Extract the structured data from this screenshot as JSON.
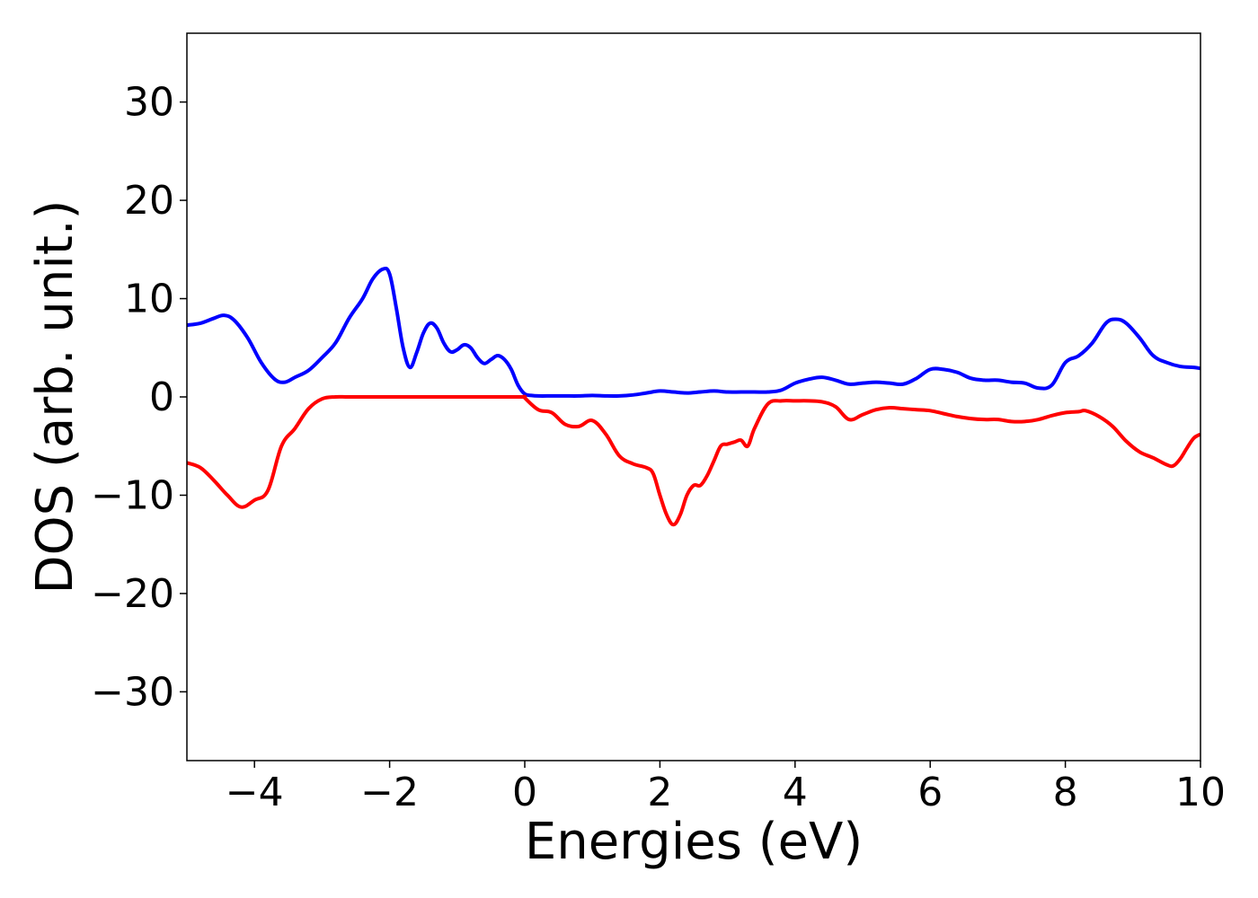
{
  "chart_data": {
    "type": "line",
    "title": "",
    "xlabel": "Energies (eV)",
    "ylabel": "DOS (arb. unit.)",
    "xlim": [
      -5,
      10
    ],
    "ylim": [
      -37,
      37
    ],
    "xticks": [
      -4,
      -2,
      0,
      2,
      4,
      6,
      8,
      10
    ],
    "xtick_labels": [
      "−4",
      "−2",
      "0",
      "2",
      "4",
      "6",
      "8",
      "10"
    ],
    "yticks": [
      30,
      20,
      10,
      0,
      -10,
      -20,
      -30
    ],
    "ytick_labels": [
      "30",
      "20",
      "10",
      "0",
      "−10",
      "−20",
      "−30"
    ],
    "grid": false,
    "legend": "none",
    "series": [
      {
        "color": "#0000ff",
        "x": [
          -5.0,
          -4.8,
          -4.6,
          -4.45,
          -4.3,
          -4.1,
          -3.9,
          -3.7,
          -3.55,
          -3.4,
          -3.2,
          -3.0,
          -2.8,
          -2.6,
          -2.4,
          -2.25,
          -2.1,
          -2.0,
          -1.9,
          -1.8,
          -1.7,
          -1.6,
          -1.5,
          -1.4,
          -1.3,
          -1.2,
          -1.1,
          -1.0,
          -0.9,
          -0.8,
          -0.7,
          -0.6,
          -0.5,
          -0.4,
          -0.3,
          -0.2,
          -0.1,
          0.0,
          0.1,
          0.2,
          0.4,
          0.6,
          0.8,
          1.0,
          1.2,
          1.4,
          1.6,
          1.8,
          2.0,
          2.2,
          2.4,
          2.6,
          2.8,
          3.0,
          3.2,
          3.4,
          3.6,
          3.8,
          4.0,
          4.2,
          4.4,
          4.6,
          4.8,
          5.0,
          5.2,
          5.4,
          5.6,
          5.8,
          6.0,
          6.2,
          6.4,
          6.6,
          6.8,
          7.0,
          7.2,
          7.4,
          7.6,
          7.8,
          8.0,
          8.2,
          8.4,
          8.6,
          8.75,
          8.9,
          9.1,
          9.3,
          9.5,
          9.7,
          9.9,
          10.0
        ],
        "y": [
          7.3,
          7.5,
          8.0,
          8.3,
          7.8,
          6.0,
          3.5,
          1.8,
          1.5,
          2.0,
          2.7,
          4.0,
          5.5,
          8.0,
          10.0,
          12.0,
          13.0,
          12.5,
          9.0,
          5.0,
          3.0,
          4.5,
          6.5,
          7.5,
          7.0,
          5.5,
          4.6,
          4.8,
          5.3,
          5.0,
          4.0,
          3.4,
          3.8,
          4.2,
          3.8,
          2.8,
          1.2,
          0.3,
          0.15,
          0.1,
          0.1,
          0.1,
          0.1,
          0.15,
          0.1,
          0.1,
          0.2,
          0.4,
          0.6,
          0.5,
          0.4,
          0.5,
          0.6,
          0.5,
          0.5,
          0.5,
          0.5,
          0.7,
          1.4,
          1.8,
          2.0,
          1.7,
          1.3,
          1.4,
          1.5,
          1.4,
          1.3,
          1.9,
          2.8,
          2.8,
          2.5,
          1.9,
          1.7,
          1.7,
          1.5,
          1.4,
          0.9,
          1.2,
          3.5,
          4.2,
          5.5,
          7.5,
          7.9,
          7.5,
          6.0,
          4.2,
          3.5,
          3.1,
          3.0,
          2.9
        ]
      },
      {
        "color": "#ff0000",
        "x": [
          -5.0,
          -4.8,
          -4.6,
          -4.4,
          -4.2,
          -4.0,
          -3.8,
          -3.6,
          -3.4,
          -3.2,
          -3.0,
          -2.8,
          -2.6,
          -2.0,
          -1.0,
          0.0,
          -0.3,
          -0.1,
          0.0,
          0.2,
          0.4,
          0.6,
          0.8,
          1.0,
          1.2,
          1.4,
          1.6,
          1.8,
          1.9,
          2.0,
          2.1,
          2.2,
          2.3,
          2.4,
          2.5,
          2.6,
          2.7,
          2.8,
          2.9,
          3.0,
          3.1,
          3.2,
          3.3,
          3.4,
          3.6,
          3.8,
          4.0,
          4.2,
          4.4,
          4.6,
          4.8,
          5.0,
          5.2,
          5.4,
          5.6,
          5.8,
          6.0,
          6.2,
          6.4,
          6.6,
          6.8,
          7.0,
          7.2,
          7.4,
          7.6,
          7.8,
          8.0,
          8.2,
          8.3,
          8.5,
          8.7,
          8.9,
          9.1,
          9.3,
          9.5,
          9.6,
          9.7,
          9.8,
          9.9,
          10.0
        ],
        "y": [
          -6.7,
          -7.2,
          -8.5,
          -10.0,
          -11.2,
          -10.5,
          -9.5,
          -5.0,
          -3.2,
          -1.2,
          -0.2,
          0.0,
          0.0,
          0.0,
          0.0,
          0.0,
          0.0,
          0.0,
          -0.1,
          -1.3,
          -1.6,
          -2.8,
          -3.0,
          -2.4,
          -3.8,
          -6.0,
          -6.8,
          -7.2,
          -7.8,
          -10.0,
          -12.0,
          -13.0,
          -12.0,
          -10.0,
          -9.0,
          -9.0,
          -8.0,
          -6.5,
          -5.0,
          -4.8,
          -4.6,
          -4.4,
          -5.0,
          -3.2,
          -0.7,
          -0.4,
          -0.4,
          -0.4,
          -0.5,
          -1.0,
          -2.3,
          -1.8,
          -1.3,
          -1.1,
          -1.2,
          -1.3,
          -1.4,
          -1.7,
          -2.0,
          -2.2,
          -2.3,
          -2.3,
          -2.5,
          -2.5,
          -2.3,
          -1.9,
          -1.6,
          -1.5,
          -1.4,
          -2.0,
          -3.0,
          -4.5,
          -5.6,
          -6.2,
          -6.9,
          -7.0,
          -6.3,
          -5.2,
          -4.2,
          -3.8
        ]
      }
    ]
  }
}
